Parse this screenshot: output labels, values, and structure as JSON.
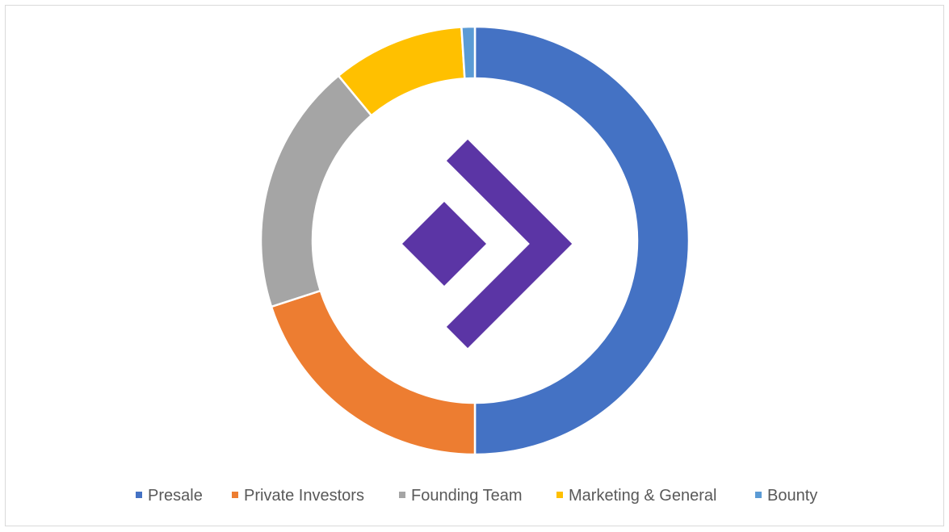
{
  "chart_data": {
    "type": "pie",
    "variant": "doughnut",
    "categories": [
      "Presale",
      "Private Investors",
      "Founding Team",
      "Marketing & General",
      "Bounty"
    ],
    "values": [
      50,
      20,
      19,
      10,
      1
    ],
    "colors": [
      "#4472C4",
      "#ED7D31",
      "#A5A5A5",
      "#FFC000",
      "#5B9BD5"
    ],
    "legend_position": "bottom",
    "title": ""
  },
  "logo": {
    "color": "#5B35A5",
    "icon": "chevron-diamond-logo"
  }
}
